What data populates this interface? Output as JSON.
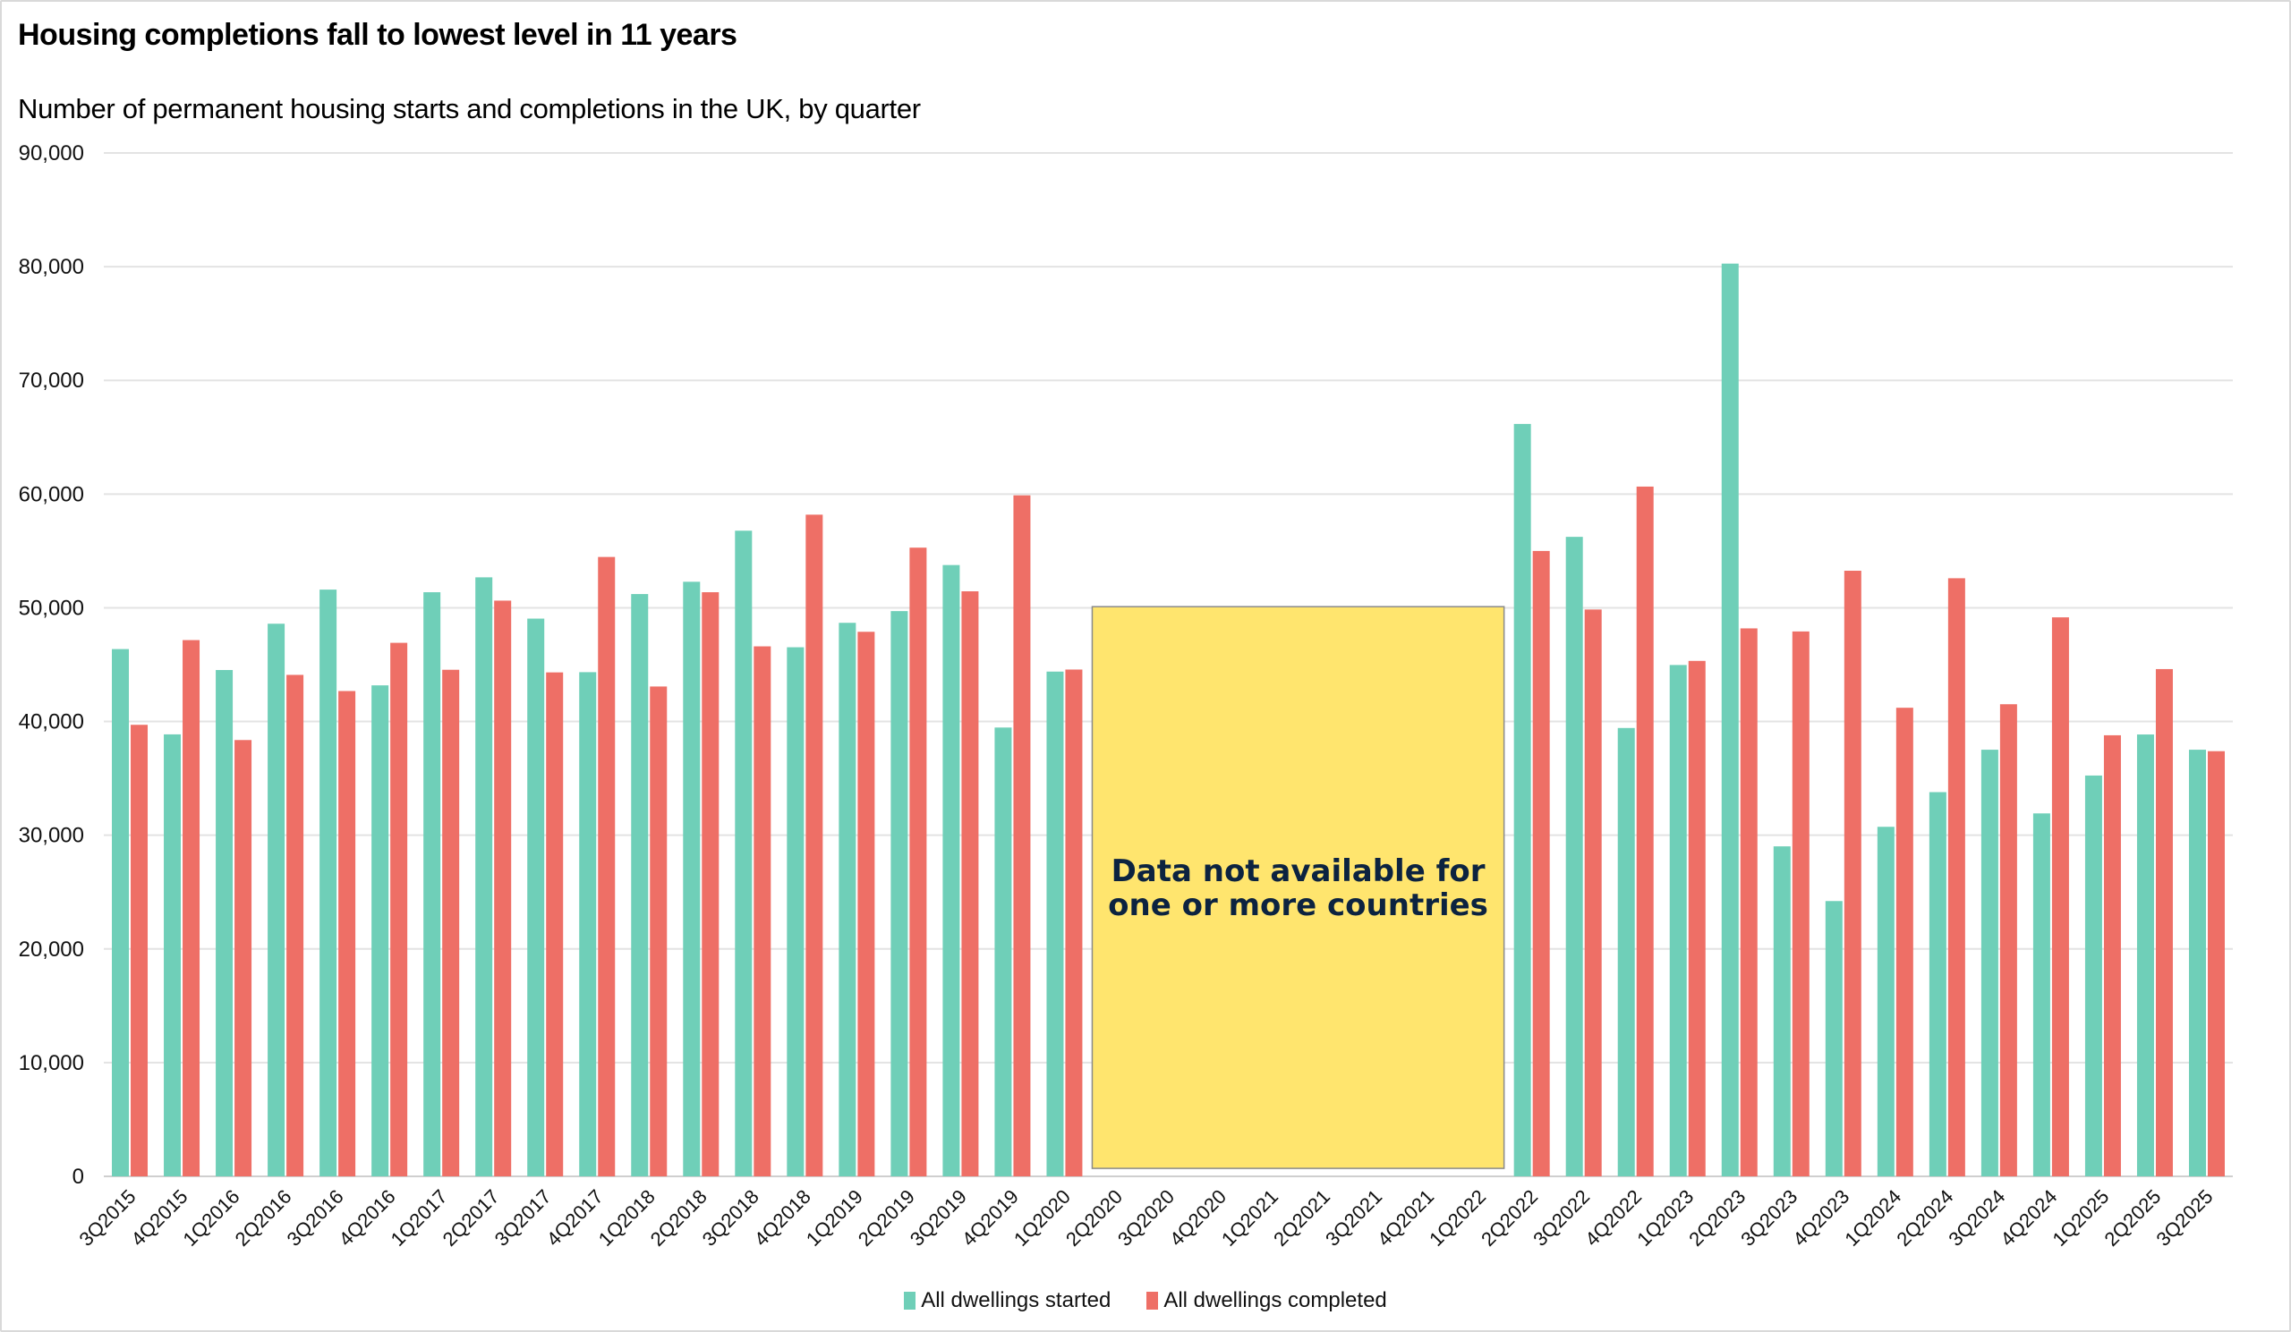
{
  "header": {
    "title": "Housing completions fall to lowest level in 11 years",
    "subtitle": "Number of permanent housing starts and completions in the UK, by quarter"
  },
  "colors": {
    "started": "#6fcfb8",
    "completed": "#ee6f66",
    "annotation_fill": "#ffe56e",
    "annotation_text": "#0c2340",
    "gridline": "#e3e3e3"
  },
  "chart_data": {
    "type": "bar",
    "title": "Housing completions fall to lowest level in 11 years",
    "subtitle": "Number of permanent housing starts and completions in the UK, by quarter",
    "xlabel": "",
    "ylabel": "",
    "ylim": [
      0,
      90000
    ],
    "yticks": [
      0,
      10000,
      20000,
      30000,
      40000,
      50000,
      60000,
      70000,
      80000,
      90000
    ],
    "ytick_labels": [
      "0",
      "10,000",
      "20,000",
      "30,000",
      "40,000",
      "50,000",
      "60,000",
      "70,000",
      "80,000",
      "90,000"
    ],
    "grid": true,
    "legend_position": "bottom-center",
    "categories": [
      "3Q2015",
      "4Q2015",
      "1Q2016",
      "2Q2016",
      "3Q2016",
      "4Q2016",
      "1Q2017",
      "2Q2017",
      "3Q2017",
      "4Q2017",
      "1Q2018",
      "2Q2018",
      "3Q2018",
      "4Q2018",
      "1Q2019",
      "2Q2019",
      "3Q2019",
      "4Q2019",
      "1Q2020",
      "2Q2020",
      "3Q2020",
      "4Q2020",
      "1Q2021",
      "2Q2021",
      "3Q2021",
      "4Q2021",
      "1Q2022",
      "2Q2022",
      "3Q2022",
      "4Q2022",
      "1Q2023",
      "2Q2023",
      "3Q2023",
      "4Q2023",
      "1Q2024",
      "2Q2024",
      "3Q2024",
      "4Q2024",
      "1Q2025",
      "2Q2025",
      "3Q2025"
    ],
    "series": [
      {
        "name": "All dwellings started",
        "values": [
          46370,
          38870,
          44530,
          48600,
          51600,
          43180,
          51370,
          52680,
          49050,
          44340,
          51210,
          52290,
          56780,
          46530,
          48680,
          49710,
          53760,
          39470,
          44390,
          null,
          null,
          null,
          null,
          null,
          null,
          null,
          null,
          66170,
          56240,
          39430,
          44970,
          80270,
          29020,
          24210,
          30740,
          33790,
          37520,
          31920,
          35250,
          38860,
          37520
        ]
      },
      {
        "name": "All dwellings completed",
        "values": [
          39710,
          47160,
          38370,
          44100,
          42680,
          46920,
          44550,
          50630,
          44320,
          54470,
          43080,
          51370,
          46610,
          58190,
          47890,
          55290,
          51450,
          59890,
          44570,
          null,
          null,
          null,
          null,
          null,
          null,
          null,
          null,
          55000,
          49850,
          60660,
          45330,
          48190,
          47920,
          53260,
          41210,
          52600,
          41520,
          49160,
          38790,
          44610,
          37390
        ]
      }
    ],
    "annotations": [
      {
        "text_lines": [
          "Data not available for",
          "one or more countries"
        ],
        "x_range": [
          "2Q2020",
          "1Q2022"
        ],
        "y_range": [
          700,
          50100
        ]
      }
    ]
  }
}
